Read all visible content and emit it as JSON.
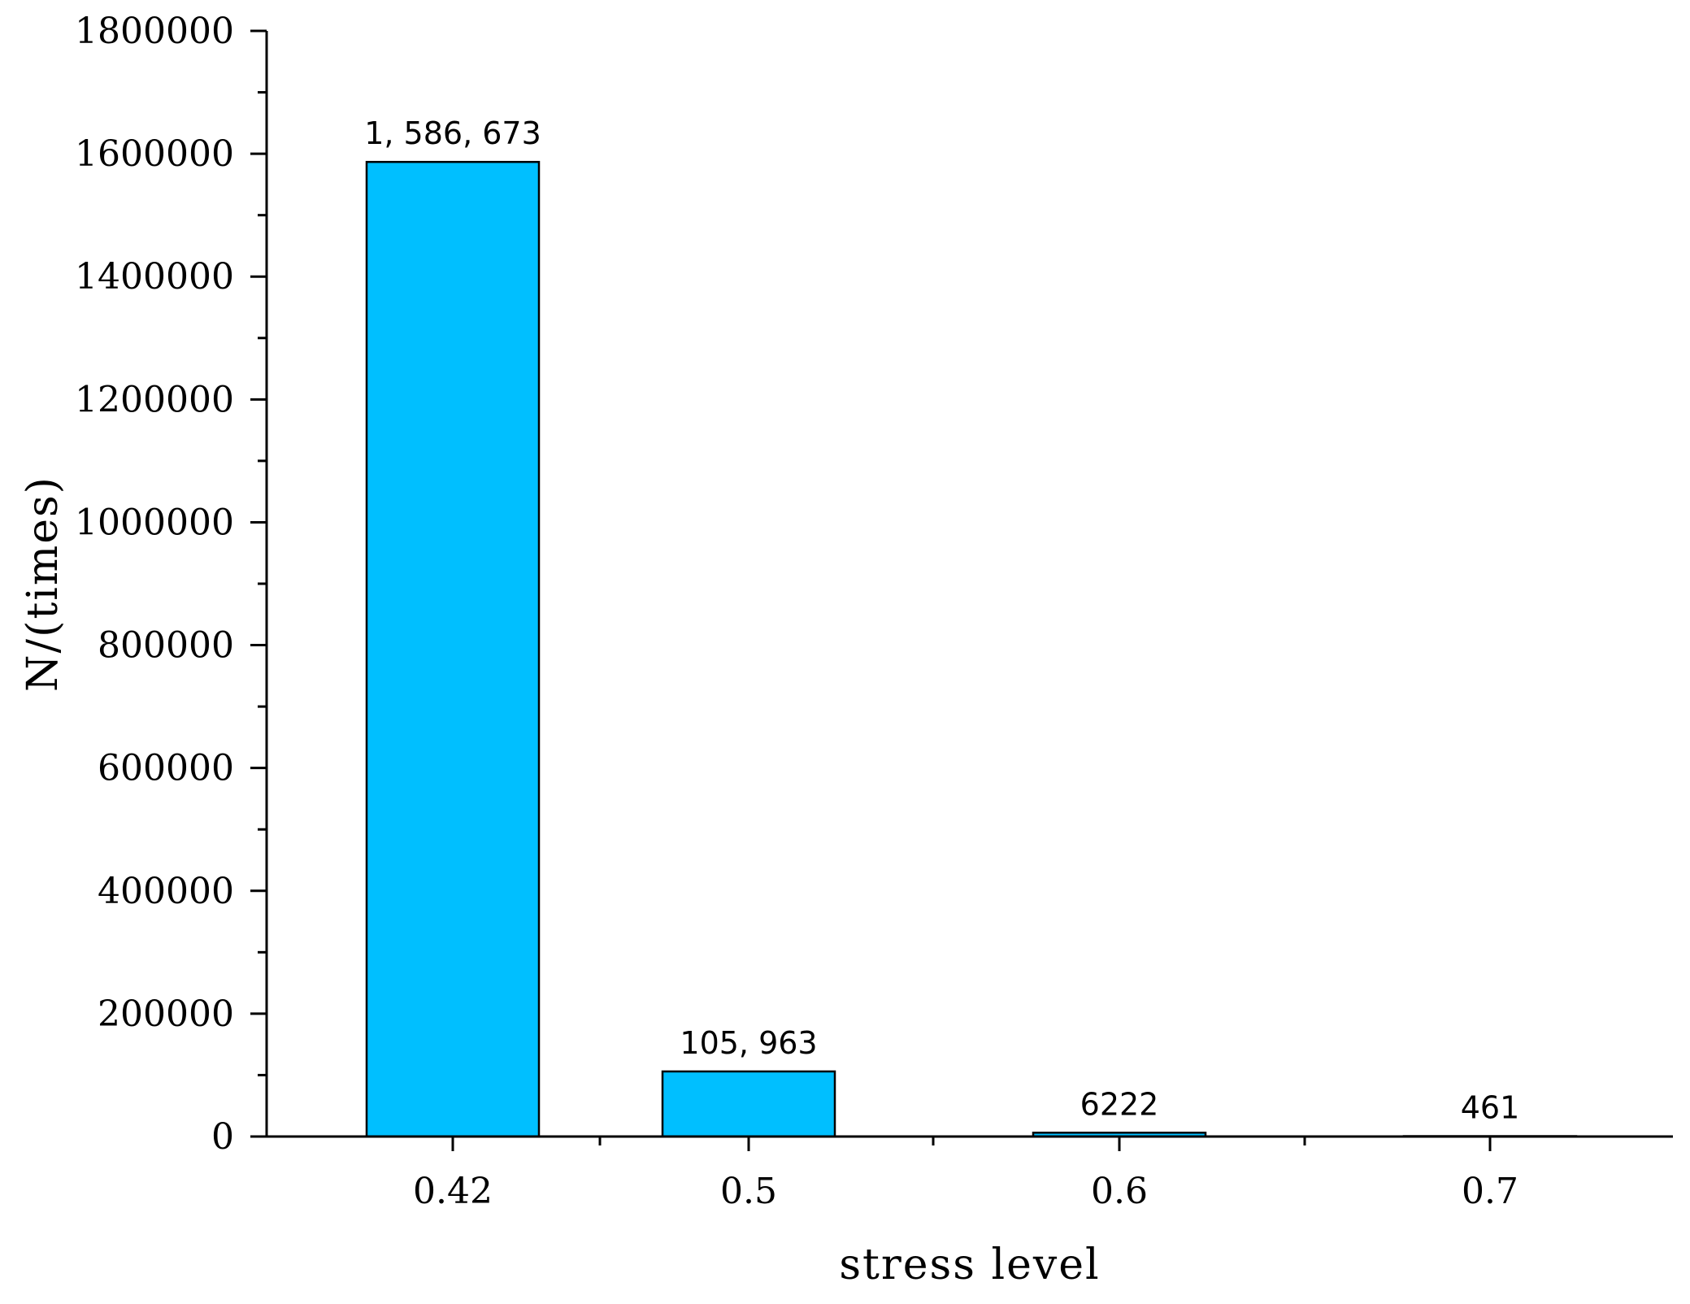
{
  "chart_data": {
    "type": "bar",
    "title": "",
    "xlabel": "stress level",
    "ylabel": "N/(times)",
    "categories": [
      "0.42",
      "0.5",
      "0.6",
      "0.7"
    ],
    "values": [
      1586673,
      105963,
      6222,
      461
    ],
    "data_labels": [
      "1, 586, 673",
      "105, 963",
      "6222",
      "461"
    ],
    "ylim": [
      0,
      1800000
    ],
    "yticks": [
      0,
      200000,
      400000,
      600000,
      800000,
      1000000,
      1200000,
      1400000,
      1600000,
      1800000
    ],
    "ytick_labels": [
      "0",
      "200000",
      "400000",
      "600000",
      "800000",
      "1000000",
      "1200000",
      "1400000",
      "1600000",
      "1800000"
    ],
    "grid": false,
    "bar_color": "#00bfff",
    "bar_edge_color": "#000000"
  }
}
